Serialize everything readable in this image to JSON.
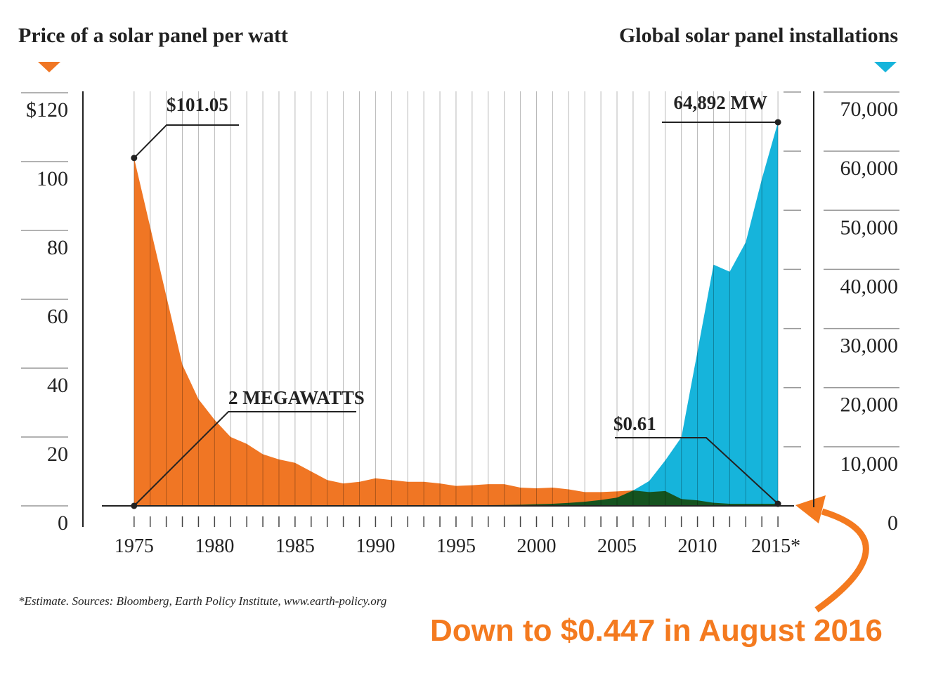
{
  "chart_data": {
    "type": "area",
    "x": [
      1975,
      1976,
      1977,
      1978,
      1979,
      1980,
      1981,
      1982,
      1983,
      1984,
      1985,
      1986,
      1987,
      1988,
      1989,
      1990,
      1991,
      1992,
      1993,
      1994,
      1995,
      1996,
      1997,
      1998,
      1999,
      2000,
      2001,
      2002,
      2003,
      2004,
      2005,
      2006,
      2007,
      2008,
      2009,
      2010,
      2011,
      2012,
      2013,
      2014,
      2015
    ],
    "series": [
      {
        "name": "Price of a solar panel per watt",
        "color": "#f07624",
        "axis": "y",
        "values": [
          101.05,
          81,
          61,
          41,
          31,
          25,
          20,
          18,
          15,
          13.5,
          12.5,
          10,
          7.5,
          6.5,
          7,
          8,
          7.5,
          7,
          7,
          6.5,
          5.8,
          6,
          6.3,
          6.3,
          5.3,
          5.1,
          5.3,
          4.8,
          4,
          4,
          4.2,
          4.5,
          4,
          4.3,
          2,
          1.6,
          0.9,
          0.6,
          0.6,
          0.6,
          0.61
        ]
      },
      {
        "name": "Global solar panel installations",
        "color": "#16b4db",
        "axis": "y2",
        "values": [
          2,
          3,
          4,
          6,
          8,
          10,
          14,
          18,
          22,
          26,
          30,
          35,
          40,
          45,
          50,
          55,
          60,
          65,
          70,
          75,
          80,
          90,
          120,
          150,
          200,
          280,
          350,
          500,
          700,
          1000,
          1400,
          2600,
          4200,
          7700,
          11600,
          26100,
          40800,
          39600,
          44600,
          55300,
          64892
        ]
      }
    ],
    "xlim": [
      1973,
      2016
    ],
    "xticks": [
      1975,
      1980,
      1985,
      1990,
      1995,
      2000,
      2005,
      2010,
      {
        "value": 2015,
        "label": "2015*"
      }
    ],
    "ylim": [
      0,
      120
    ],
    "yticks": [
      0,
      20,
      40,
      60,
      80,
      100,
      {
        "value": 120,
        "label": "$120"
      }
    ],
    "y2lim": [
      0,
      70000
    ],
    "y2ticks": [
      0,
      {
        "value": 10000,
        "label": "10,000"
      },
      {
        "value": 20000,
        "label": "20,000"
      },
      {
        "value": 30000,
        "label": "30,000"
      },
      {
        "value": 40000,
        "label": "40,000"
      },
      {
        "value": 50000,
        "label": "50,000"
      },
      {
        "value": 60000,
        "label": "60,000"
      },
      {
        "value": 70000,
        "label": "70,000"
      }
    ],
    "annotations": [
      "$101.05",
      "64,892 MW",
      "2 MEGAWATTS",
      "$0.61",
      "Down to $0.447 in August 2016"
    ],
    "footnote": "*Estimate. Sources: Bloomberg, Earth Policy Institute, www.earth-policy.org"
  }
}
